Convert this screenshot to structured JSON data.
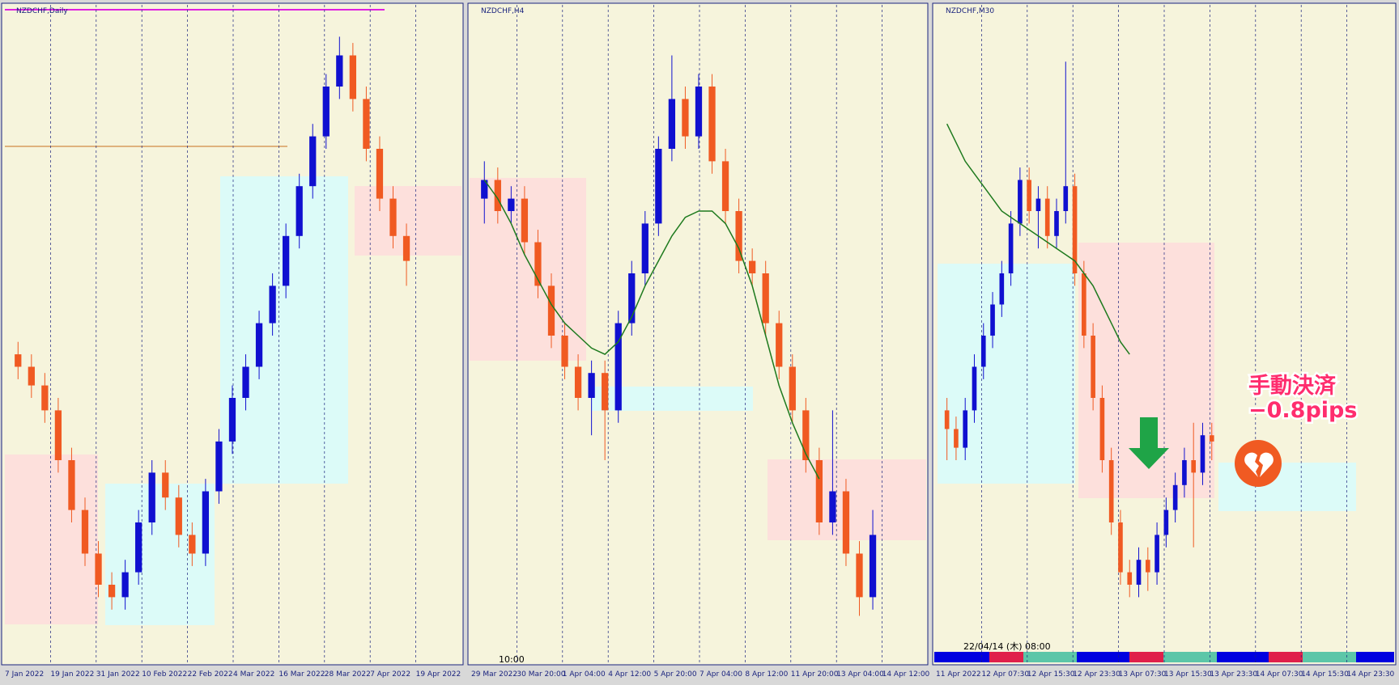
{
  "panels": [
    {
      "title": "NZDCHF,Daily",
      "ylim": [
        0,
        100
      ],
      "x_labels": [
        "7 Jan 2022",
        "19 Jan 2022",
        "31 Jan 2022",
        "10 Feb 2022",
        "22 Feb 2022",
        "4 Mar 2022",
        "16 Mar 2022",
        "28 Mar 2022",
        "7 Apr 2022",
        "19 Apr 2022"
      ],
      "candles": [
        [
          47,
          49,
          43,
          45
        ],
        [
          45,
          47,
          40,
          42
        ],
        [
          42,
          44,
          36,
          38
        ],
        [
          38,
          40,
          28,
          30
        ],
        [
          30,
          32,
          20,
          22
        ],
        [
          22,
          24,
          13,
          15
        ],
        [
          15,
          17,
          8,
          10
        ],
        [
          10,
          12,
          6,
          8
        ],
        [
          8,
          14,
          6,
          12
        ],
        [
          12,
          22,
          10,
          20
        ],
        [
          20,
          30,
          18,
          28
        ],
        [
          28,
          30,
          22,
          24
        ],
        [
          24,
          26,
          16,
          18
        ],
        [
          18,
          20,
          13,
          15
        ],
        [
          15,
          27,
          13,
          25
        ],
        [
          25,
          35,
          23,
          33
        ],
        [
          33,
          42,
          31,
          40
        ],
        [
          40,
          47,
          38,
          45
        ],
        [
          45,
          54,
          43,
          52
        ],
        [
          52,
          60,
          50,
          58
        ],
        [
          58,
          68,
          56,
          66
        ],
        [
          66,
          76,
          64,
          74
        ],
        [
          74,
          84,
          72,
          82
        ],
        [
          82,
          92,
          80,
          90
        ],
        [
          90,
          98,
          88,
          95
        ],
        [
          95,
          97,
          86,
          88
        ],
        [
          88,
          90,
          78,
          80
        ],
        [
          80,
          82,
          70,
          72
        ],
        [
          72,
          74,
          64,
          66
        ],
        [
          66,
          68,
          58,
          62
        ]
      ],
      "ma": []
    },
    {
      "title": "NZDCHF,H4",
      "ylim": [
        0,
        100
      ],
      "footer": "10:00",
      "x_labels": [
        "29 Mar 2022",
        "30 Mar 20:00",
        "1 Apr 04:00",
        "4 Apr 12:00",
        "5 Apr 20:00",
        "7 Apr 04:00",
        "8 Apr 12:00",
        "11 Apr 20:00",
        "13 Apr 04:00",
        "14 Apr 12:00"
      ],
      "candles": [
        [
          72,
          78,
          68,
          75
        ],
        [
          75,
          77,
          68,
          70
        ],
        [
          70,
          74,
          68,
          72
        ],
        [
          72,
          74,
          63,
          65
        ],
        [
          65,
          67,
          56,
          58
        ],
        [
          58,
          60,
          48,
          50
        ],
        [
          50,
          52,
          43,
          45
        ],
        [
          45,
          47,
          38,
          40
        ],
        [
          40,
          46,
          34,
          44
        ],
        [
          44,
          46,
          30,
          38
        ],
        [
          38,
          54,
          36,
          52
        ],
        [
          52,
          62,
          50,
          60
        ],
        [
          60,
          70,
          58,
          68
        ],
        [
          68,
          82,
          66,
          80
        ],
        [
          80,
          95,
          78,
          88
        ],
        [
          88,
          90,
          80,
          82
        ],
        [
          82,
          92,
          80,
          90
        ],
        [
          90,
          92,
          76,
          78
        ],
        [
          78,
          80,
          68,
          70
        ],
        [
          70,
          72,
          60,
          62
        ],
        [
          62,
          64,
          58,
          60
        ],
        [
          60,
          62,
          50,
          52
        ],
        [
          52,
          54,
          43,
          45
        ],
        [
          45,
          47,
          36,
          38
        ],
        [
          38,
          40,
          28,
          30
        ],
        [
          30,
          32,
          18,
          20
        ],
        [
          20,
          38,
          18,
          25
        ],
        [
          25,
          27,
          13,
          15
        ],
        [
          15,
          17,
          5,
          8
        ],
        [
          8,
          22,
          6,
          18
        ]
      ],
      "ma": [
        75,
        72,
        68,
        63,
        59,
        55,
        52,
        50,
        48,
        47,
        49,
        53,
        58,
        62,
        66,
        69,
        70,
        70,
        68,
        64,
        58,
        50,
        42,
        36,
        31,
        27,
        null,
        null,
        null,
        null
      ]
    },
    {
      "title": "NZDCHF,M30",
      "ylim": [
        0,
        100
      ],
      "footer": "22/04/14 (木) 08:00",
      "x_labels": [
        "11 Apr 2022",
        "12 Apr 07:30",
        "12 Apr 15:30",
        "12 Apr 23:30",
        "13 Apr 07:30",
        "13 Apr 15:30",
        "13 Apr 23:30",
        "14 Apr 07:30",
        "14 Apr 15:30",
        "14 Apr 23:30"
      ],
      "candles": [
        [
          38,
          40,
          30,
          35
        ],
        [
          35,
          37,
          30,
          32
        ],
        [
          32,
          40,
          30,
          38
        ],
        [
          38,
          47,
          36,
          45
        ],
        [
          45,
          52,
          43,
          50
        ],
        [
          50,
          57,
          48,
          55
        ],
        [
          55,
          62,
          53,
          60
        ],
        [
          60,
          70,
          58,
          68
        ],
        [
          68,
          77,
          66,
          75
        ],
        [
          75,
          77,
          68,
          70
        ],
        [
          70,
          74,
          64,
          72
        ],
        [
          72,
          74,
          64,
          66
        ],
        [
          66,
          72,
          64,
          70
        ],
        [
          70,
          94,
          68,
          74
        ],
        [
          74,
          76,
          58,
          60
        ],
        [
          60,
          62,
          48,
          50
        ],
        [
          50,
          52,
          38,
          40
        ],
        [
          40,
          42,
          28,
          30
        ],
        [
          30,
          32,
          18,
          20
        ],
        [
          20,
          22,
          10,
          12
        ],
        [
          12,
          14,
          8,
          10
        ],
        [
          10,
          16,
          8,
          14
        ],
        [
          14,
          16,
          9,
          12
        ],
        [
          12,
          20,
          10,
          18
        ],
        [
          18,
          24,
          16,
          22
        ],
        [
          22,
          28,
          20,
          26
        ],
        [
          26,
          32,
          24,
          30
        ],
        [
          30,
          36,
          16,
          28
        ],
        [
          28,
          36,
          26,
          34
        ],
        [
          34,
          36,
          30,
          33
        ]
      ],
      "ma": [
        84,
        81,
        78,
        76,
        74,
        72,
        70,
        69,
        68,
        67,
        66,
        65,
        64,
        63,
        62,
        60,
        58,
        55,
        52,
        49,
        47,
        null,
        null,
        null,
        null,
        null,
        null,
        null,
        null,
        null
      ]
    }
  ],
  "annotation": {
    "line1": "手動決済",
    "line2": "−0.8pips"
  }
}
